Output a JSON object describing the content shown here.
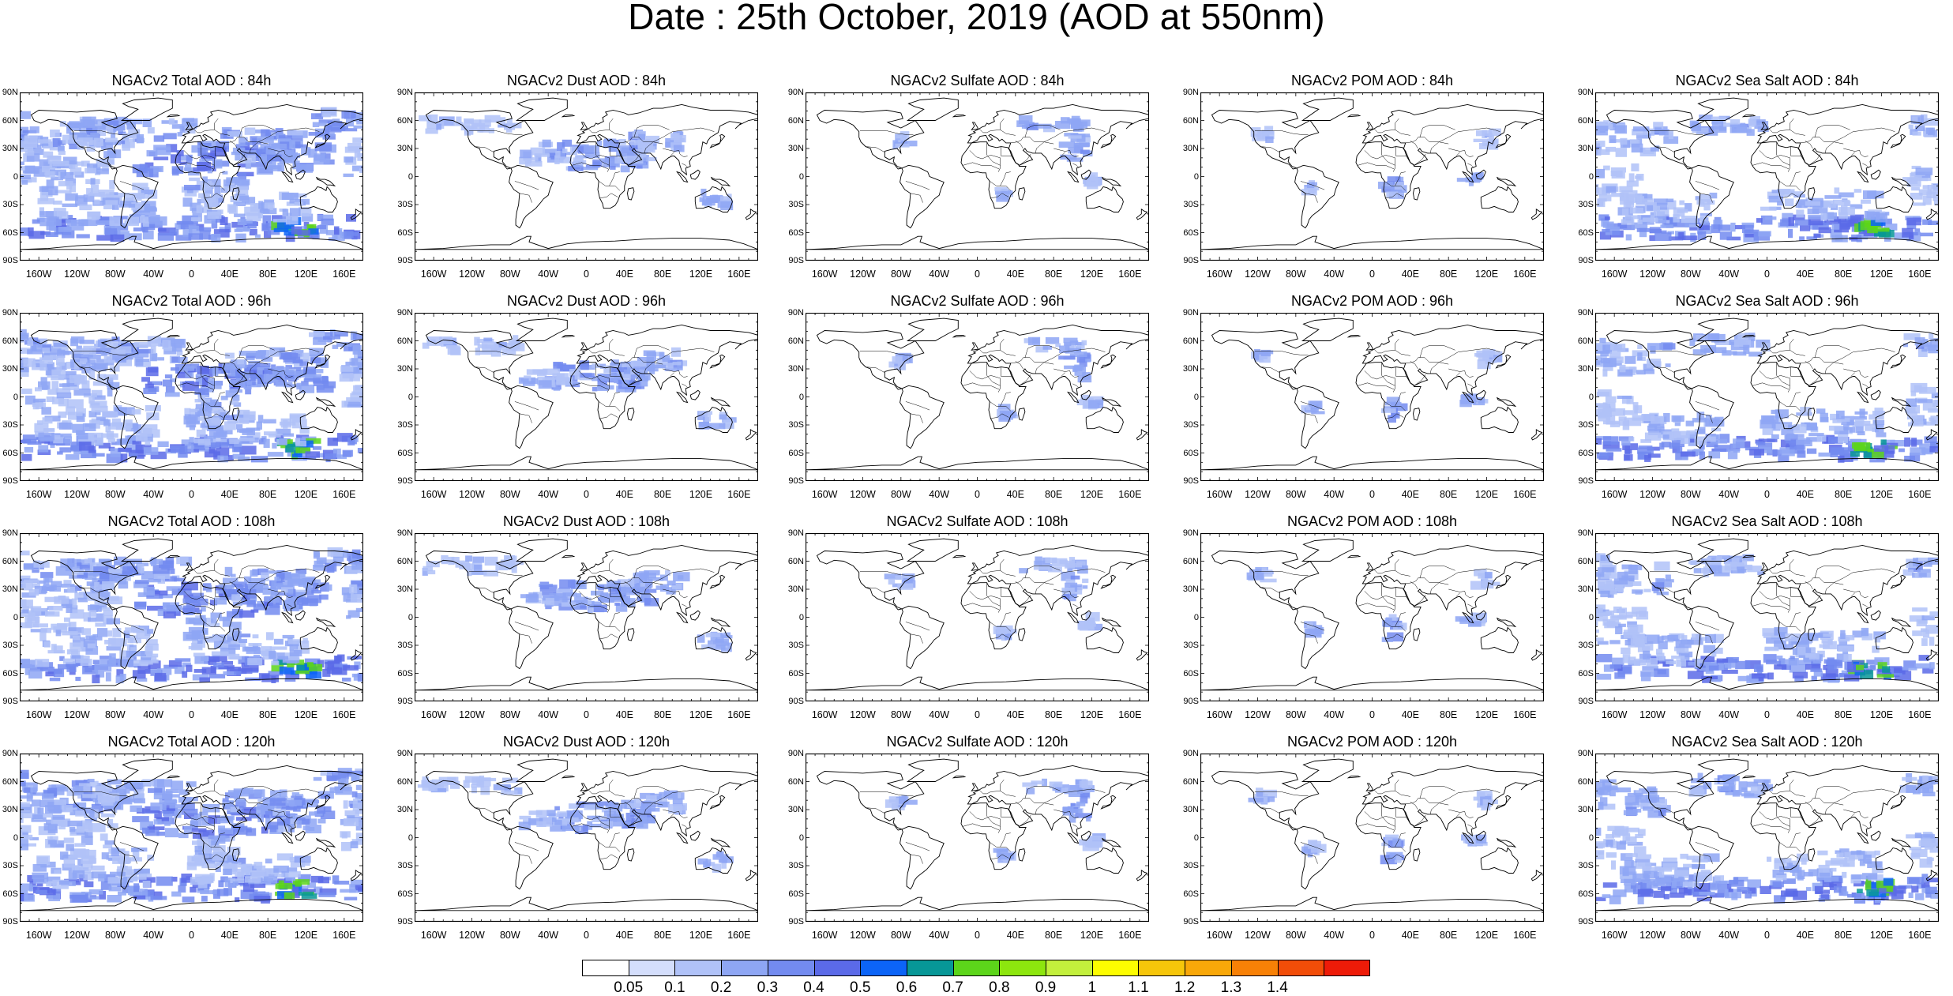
{
  "title": "Date : 25th October, 2019 (AOD at 550nm)",
  "panels": [
    {
      "title": "NGACv2 Total AOD : 84h",
      "species": "total",
      "lead": "84h"
    },
    {
      "title": "NGACv2 Dust AOD : 84h",
      "species": "dust",
      "lead": "84h"
    },
    {
      "title": "NGACv2 Sulfate AOD : 84h",
      "species": "sulfate",
      "lead": "84h"
    },
    {
      "title": "NGACv2 POM AOD : 84h",
      "species": "pom",
      "lead": "84h"
    },
    {
      "title": "NGACv2 Sea Salt AOD : 84h",
      "species": "seasalt",
      "lead": "84h"
    },
    {
      "title": "NGACv2 Total AOD : 96h",
      "species": "total",
      "lead": "96h"
    },
    {
      "title": "NGACv2 Dust AOD : 96h",
      "species": "dust",
      "lead": "96h"
    },
    {
      "title": "NGACv2 Sulfate AOD : 96h",
      "species": "sulfate",
      "lead": "96h"
    },
    {
      "title": "NGACv2 POM AOD : 96h",
      "species": "pom",
      "lead": "96h"
    },
    {
      "title": "NGACv2 Sea Salt AOD : 96h",
      "species": "seasalt",
      "lead": "96h"
    },
    {
      "title": "NGACv2 Total AOD : 108h",
      "species": "total",
      "lead": "108h"
    },
    {
      "title": "NGACv2 Dust AOD : 108h",
      "species": "dust",
      "lead": "108h"
    },
    {
      "title": "NGACv2 Sulfate AOD : 108h",
      "species": "sulfate",
      "lead": "108h"
    },
    {
      "title": "NGACv2 POM AOD : 108h",
      "species": "pom",
      "lead": "108h"
    },
    {
      "title": "NGACv2 Sea Salt AOD : 108h",
      "species": "seasalt",
      "lead": "108h"
    },
    {
      "title": "NGACv2 Total AOD : 120h",
      "species": "total",
      "lead": "120h"
    },
    {
      "title": "NGACv2 Dust AOD : 120h",
      "species": "dust",
      "lead": "120h"
    },
    {
      "title": "NGACv2 Sulfate AOD : 120h",
      "species": "sulfate",
      "lead": "120h"
    },
    {
      "title": "NGACv2 POM AOD : 120h",
      "species": "pom",
      "lead": "120h"
    },
    {
      "title": "NGACv2 Sea Salt  AOD : 120h",
      "species": "seasalt",
      "lead": "120h"
    }
  ],
  "lat_labels": [
    "90N",
    "60N",
    "30N",
    "0",
    "30S",
    "60S",
    "90S"
  ],
  "lon_labels": [
    "160W",
    "120W",
    "80W",
    "40W",
    "0",
    "40E",
    "80E",
    "120E",
    "160E"
  ],
  "colorbar": {
    "labels": [
      "0.05",
      "0.1",
      "0.2",
      "0.3",
      "0.4",
      "0.5",
      "0.6",
      "0.7",
      "0.8",
      "0.9",
      "1",
      "1.1",
      "1.2",
      "1.3",
      "1.4"
    ],
    "colors": [
      "#ffffff",
      "#d4defc",
      "#b0c2f8",
      "#8ea6f4",
      "#738bf0",
      "#5b6ae8",
      "#0c64f7",
      "#079797",
      "#5cd51a",
      "#8de60e",
      "#c3f03c",
      "#fdfd00",
      "#f6c60a",
      "#f9a809",
      "#f88106",
      "#f24d08",
      "#ee1b08"
    ]
  }
}
